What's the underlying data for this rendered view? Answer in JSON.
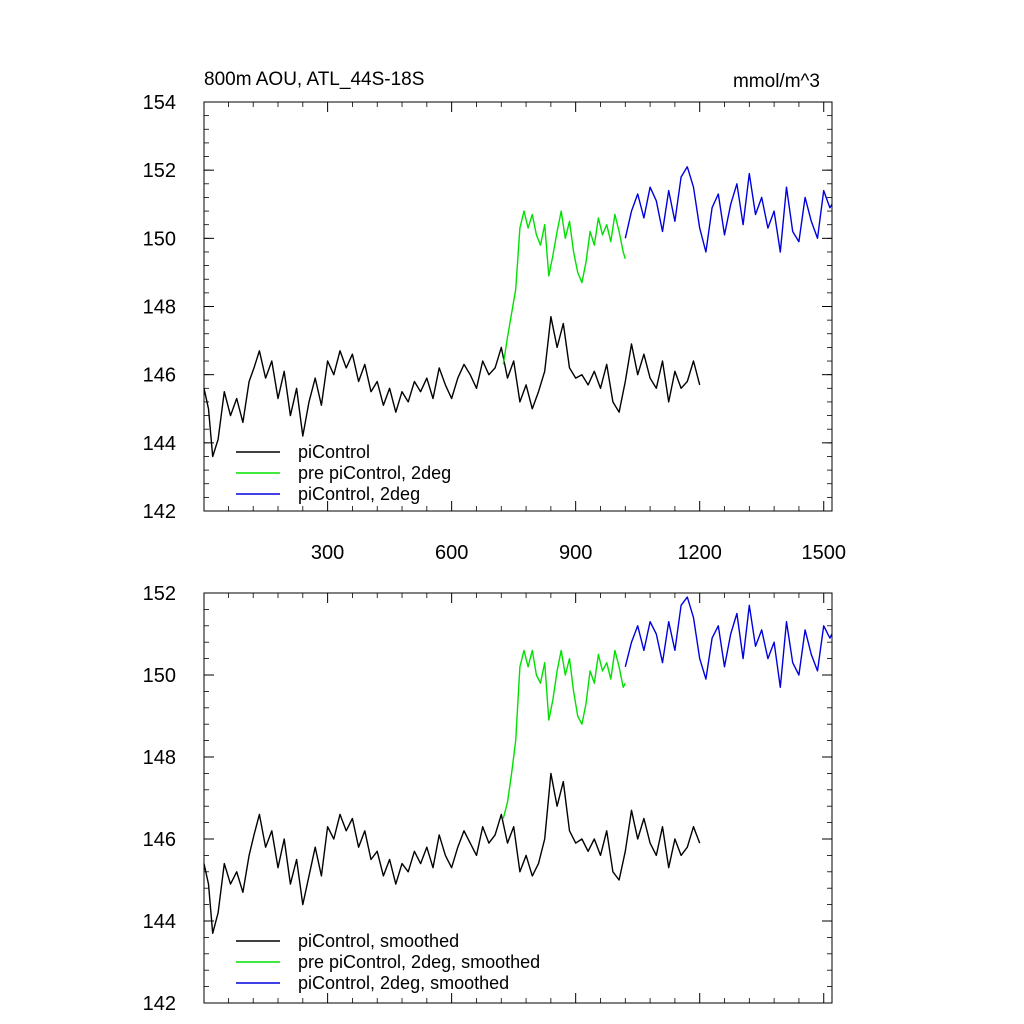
{
  "chart_data": [
    {
      "type": "line",
      "title_left": "800m AOU, ATL_44S-18S",
      "title_right": "mmol/m^3",
      "xlim": [
        1,
        1520
      ],
      "ylim": [
        142,
        154
      ],
      "x_ticks": [
        300,
        600,
        900,
        1200,
        1500
      ],
      "x_tick_labels": [
        "300",
        "600",
        "900",
        "1200",
        "1500"
      ],
      "y_ticks": [
        142,
        144,
        146,
        148,
        150,
        152,
        154
      ],
      "y_tick_labels": [
        "142",
        "144",
        "146",
        "148",
        "150",
        "152",
        "154"
      ],
      "legend_position": "bottom-left",
      "series": [
        {
          "name": "piControl",
          "color": "#000000",
          "x": [
            1,
            12,
            22,
            35,
            50,
            65,
            80,
            95,
            110,
            122,
            135,
            150,
            165,
            180,
            195,
            210,
            225,
            240,
            255,
            270,
            285,
            300,
            315,
            330,
            345,
            360,
            375,
            390,
            405,
            420,
            435,
            450,
            465,
            480,
            495,
            510,
            525,
            540,
            555,
            570,
            585,
            600,
            615,
            630,
            645,
            660,
            675,
            690,
            705,
            720,
            735,
            750,
            765,
            780,
            795,
            810,
            825,
            840,
            855,
            870,
            885,
            900,
            915,
            930,
            945,
            960,
            975,
            990,
            1005,
            1020,
            1035,
            1050,
            1065,
            1080,
            1095,
            1110,
            1125,
            1140,
            1155,
            1170,
            1185,
            1200
          ],
          "values": [
            145.6,
            145.0,
            143.6,
            144.1,
            145.5,
            144.8,
            145.3,
            144.6,
            145.8,
            146.2,
            146.7,
            145.9,
            146.4,
            145.3,
            146.1,
            144.8,
            145.6,
            144.2,
            145.2,
            145.9,
            145.1,
            146.4,
            146.0,
            146.7,
            146.2,
            146.6,
            145.8,
            146.3,
            145.5,
            145.8,
            145.1,
            145.6,
            144.9,
            145.5,
            145.2,
            145.8,
            145.5,
            145.9,
            145.3,
            146.2,
            145.7,
            145.3,
            145.9,
            146.3,
            146.0,
            145.6,
            146.4,
            146.0,
            146.2,
            146.8,
            145.9,
            146.4,
            145.2,
            145.7,
            145.0,
            145.5,
            146.1,
            147.7,
            146.8,
            147.5,
            146.2,
            145.9,
            146.0,
            145.7,
            146.1,
            145.6,
            146.3,
            145.2,
            144.9,
            145.8,
            146.9,
            146.0,
            146.6,
            145.9,
            145.6,
            146.4,
            145.2,
            146.1,
            145.6,
            145.8,
            146.4,
            145.7
          ]
        },
        {
          "name": "pre piControl, 2deg",
          "color": "#00e000",
          "x": [
            725,
            735,
            745,
            755,
            765,
            775,
            785,
            795,
            805,
            815,
            825,
            835,
            845,
            855,
            865,
            875,
            885,
            895,
            905,
            915,
            925,
            935,
            945,
            955,
            965,
            975,
            985,
            995,
            1005,
            1015,
            1020
          ],
          "values": [
            146.3,
            147.1,
            147.8,
            148.5,
            150.3,
            150.8,
            150.3,
            150.7,
            150.1,
            149.8,
            150.4,
            148.9,
            149.5,
            150.2,
            150.8,
            150.0,
            150.5,
            149.6,
            149.0,
            148.7,
            149.3,
            150.2,
            149.8,
            150.6,
            150.1,
            150.4,
            149.9,
            150.7,
            150.2,
            149.6,
            149.4
          ],
          "label": "pre piControl, 2deg"
        },
        {
          "name": "piControl, 2deg",
          "color": "#0000dd",
          "x": [
            1020,
            1035,
            1050,
            1065,
            1080,
            1095,
            1110,
            1125,
            1140,
            1155,
            1170,
            1185,
            1200,
            1215,
            1230,
            1245,
            1260,
            1275,
            1290,
            1305,
            1320,
            1335,
            1350,
            1365,
            1380,
            1395,
            1410,
            1425,
            1440,
            1455,
            1470,
            1485,
            1500,
            1515,
            1520
          ],
          "values": [
            150.0,
            150.8,
            151.3,
            150.6,
            151.5,
            151.1,
            150.2,
            151.4,
            150.5,
            151.8,
            152.1,
            151.5,
            150.3,
            149.6,
            150.9,
            151.3,
            150.1,
            151.0,
            151.6,
            150.4,
            151.9,
            150.7,
            151.2,
            150.3,
            150.8,
            149.6,
            151.5,
            150.2,
            149.9,
            151.2,
            150.5,
            150.0,
            151.4,
            150.9,
            151.0
          ]
        }
      ]
    },
    {
      "type": "line",
      "xlim": [
        1,
        1520
      ],
      "ylim": [
        142,
        152
      ],
      "x_ticks": [
        300,
        600,
        900,
        1200,
        1500
      ],
      "y_ticks": [
        142,
        144,
        146,
        148,
        150,
        152
      ],
      "y_tick_labels": [
        "142",
        "144",
        "146",
        "148",
        "150",
        "152"
      ],
      "legend_position": "bottom-left",
      "series": [
        {
          "name": "piControl, smoothed",
          "color": "#000000",
          "x": [
            1,
            12,
            22,
            35,
            50,
            65,
            80,
            95,
            110,
            122,
            135,
            150,
            165,
            180,
            195,
            210,
            225,
            240,
            255,
            270,
            285,
            300,
            315,
            330,
            345,
            360,
            375,
            390,
            405,
            420,
            435,
            450,
            465,
            480,
            495,
            510,
            525,
            540,
            555,
            570,
            585,
            600,
            615,
            630,
            645,
            660,
            675,
            690,
            705,
            720,
            735,
            750,
            765,
            780,
            795,
            810,
            825,
            840,
            855,
            870,
            885,
            900,
            915,
            930,
            945,
            960,
            975,
            990,
            1005,
            1020,
            1035,
            1050,
            1065,
            1080,
            1095,
            1110,
            1125,
            1140,
            1155,
            1170,
            1185,
            1200
          ],
          "values": [
            145.4,
            144.9,
            143.7,
            144.2,
            145.4,
            144.9,
            145.2,
            144.7,
            145.6,
            146.1,
            146.6,
            145.8,
            146.2,
            145.3,
            146.0,
            144.9,
            145.5,
            144.4,
            145.1,
            145.8,
            145.1,
            146.3,
            146.0,
            146.6,
            146.2,
            146.5,
            145.8,
            146.2,
            145.5,
            145.7,
            145.1,
            145.5,
            144.9,
            145.4,
            145.2,
            145.7,
            145.4,
            145.8,
            145.3,
            146.1,
            145.6,
            145.3,
            145.8,
            146.2,
            145.9,
            145.6,
            146.3,
            145.9,
            146.1,
            146.6,
            145.9,
            146.3,
            145.2,
            145.6,
            145.1,
            145.4,
            146.0,
            147.6,
            146.8,
            147.4,
            146.2,
            145.9,
            146.0,
            145.7,
            146.0,
            145.6,
            146.2,
            145.2,
            145.0,
            145.7,
            146.7,
            146.0,
            146.5,
            145.9,
            145.6,
            146.3,
            145.3,
            146.0,
            145.6,
            145.8,
            146.3,
            145.9
          ]
        },
        {
          "name": "pre piControl, 2deg, smoothed",
          "color": "#00e000",
          "x": [
            725,
            735,
            745,
            755,
            765,
            775,
            785,
            795,
            805,
            815,
            825,
            835,
            845,
            855,
            865,
            875,
            885,
            895,
            905,
            915,
            925,
            935,
            945,
            955,
            965,
            975,
            985,
            995,
            1005,
            1015,
            1020
          ],
          "values": [
            146.5,
            146.9,
            147.6,
            148.4,
            150.2,
            150.6,
            150.2,
            150.6,
            150.0,
            149.8,
            150.3,
            148.9,
            149.4,
            150.1,
            150.6,
            150.0,
            150.4,
            149.6,
            149.0,
            148.8,
            149.3,
            150.1,
            149.8,
            150.5,
            150.1,
            150.3,
            149.9,
            150.6,
            150.2,
            149.7,
            149.8
          ]
        },
        {
          "name": "piControl, 2deg, smoothed",
          "color": "#0000dd",
          "x": [
            1020,
            1035,
            1050,
            1065,
            1080,
            1095,
            1110,
            1125,
            1140,
            1155,
            1170,
            1185,
            1200,
            1215,
            1230,
            1245,
            1260,
            1275,
            1290,
            1305,
            1320,
            1335,
            1350,
            1365,
            1380,
            1395,
            1410,
            1425,
            1440,
            1455,
            1470,
            1485,
            1500,
            1515,
            1520
          ],
          "values": [
            150.2,
            150.8,
            151.2,
            150.6,
            151.3,
            151.0,
            150.3,
            151.3,
            150.6,
            151.7,
            151.9,
            151.4,
            150.4,
            149.9,
            150.9,
            151.2,
            150.2,
            151.0,
            151.5,
            150.4,
            151.7,
            150.7,
            151.1,
            150.4,
            150.8,
            149.7,
            151.3,
            150.3,
            150.0,
            151.1,
            150.5,
            150.1,
            151.2,
            150.9,
            151.0
          ]
        }
      ]
    }
  ]
}
